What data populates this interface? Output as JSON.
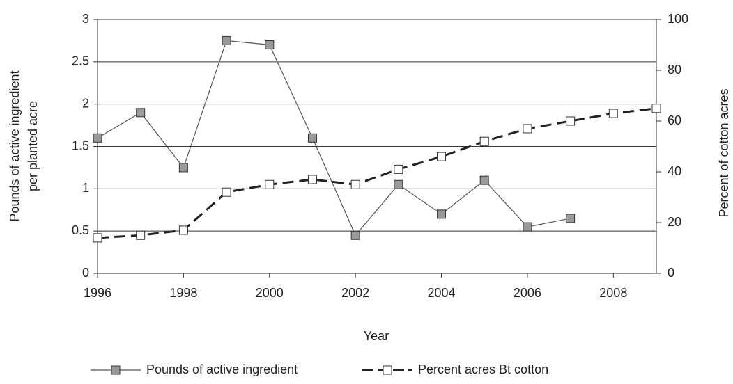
{
  "chart_data": {
    "type": "line",
    "xlabel": "Year",
    "ylabel": [
      "Pounds of active ingredient",
      "per planted acre"
    ],
    "y2label": "Percent of cotton acres",
    "xlim": [
      1996,
      2009
    ],
    "xticks": [
      1996,
      1998,
      2000,
      2002,
      2004,
      2006,
      2008
    ],
    "ylim": [
      0,
      3
    ],
    "yticks": [
      0,
      0.5,
      1,
      1.5,
      2,
      2.5,
      3
    ],
    "y2lim": [
      0,
      100
    ],
    "y2ticks": [
      0,
      20,
      40,
      60,
      80,
      100
    ],
    "grid": true,
    "series": [
      {
        "name": "Pounds of active ingredient",
        "color": "#555555",
        "marker_color": "#999999",
        "dashed": false,
        "x": [
          1996,
          1997,
          1998,
          1999,
          2000,
          2001,
          2002,
          2003,
          2004,
          2005,
          2006,
          2007
        ],
        "values": [
          1.6,
          1.9,
          1.25,
          2.75,
          2.7,
          1.6,
          0.45,
          1.05,
          0.7,
          1.1,
          0.55,
          0.65
        ]
      },
      {
        "name": "Percent acres Bt cotton",
        "color": "#222222",
        "marker_color": "#ffffff",
        "dashed": true,
        "axis": "y2",
        "x": [
          1996,
          1997,
          1998,
          1999,
          2000,
          2001,
          2002,
          2003,
          2004,
          2005,
          2006,
          2007,
          2008,
          2009
        ],
        "values": [
          14,
          15,
          17,
          32,
          35,
          37,
          35,
          41,
          46,
          52,
          57,
          60,
          63,
          65
        ]
      }
    ]
  }
}
